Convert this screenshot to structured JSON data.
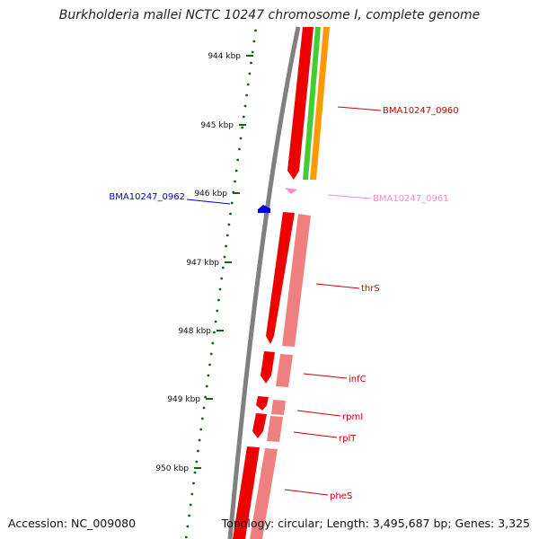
{
  "title": "Burkholderia mallei NCTC 10247 chromosome I, complete genome",
  "footer": {
    "accession": "Accession: NC_009080",
    "topology": "Topology: circular; Length: 3,495,687 bp; Genes: 3,325"
  },
  "colors": {
    "backbone": "#808080",
    "cds_dark": "#ee0000",
    "cds_light": "#f08080",
    "gene_green": "#44cc33",
    "gene_orange": "#ff9900",
    "misc_pink": "#ff88cc",
    "label_blue": "#0000cc",
    "ruler": "#116611"
  },
  "ruler": {
    "ticks": [
      {
        "label": "944 kbp"
      },
      {
        "label": "945 kbp"
      },
      {
        "label": "946 kbp"
      },
      {
        "label": "947 kbp"
      },
      {
        "label": "948 kbp"
      },
      {
        "label": "949 kbp"
      },
      {
        "label": "950 kbp"
      }
    ]
  },
  "features": [
    {
      "name": "BMA10247_0960",
      "color": "#cc0000"
    },
    {
      "name": "BMA10247_0961",
      "color": "#ff88cc"
    },
    {
      "name": "BMA10247_0962",
      "color": "#0000cc"
    },
    {
      "name": "thrS",
      "color": "#cc0000"
    },
    {
      "name": "infC",
      "color": "#cc0000"
    },
    {
      "name": "rpmI",
      "color": "#cc0000"
    },
    {
      "name": "rplT",
      "color": "#cc0000"
    },
    {
      "name": "pheS",
      "color": "#cc0000"
    }
  ]
}
